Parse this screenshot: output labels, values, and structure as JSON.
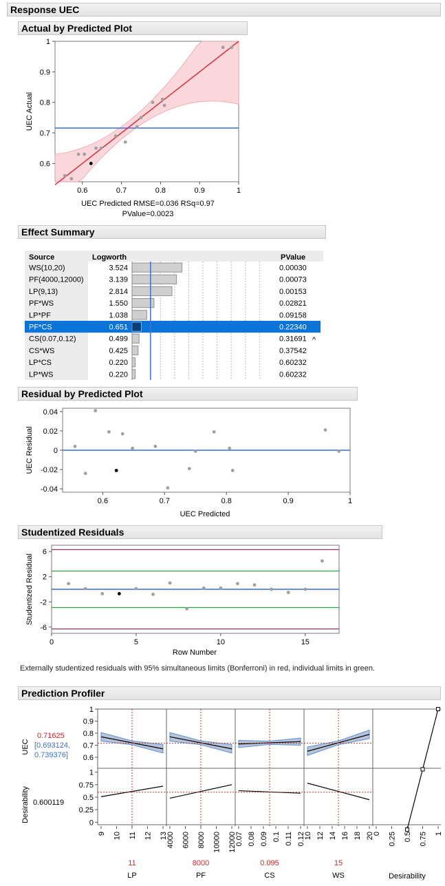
{
  "response_title": "Response UEC",
  "actual_predicted": {
    "title": "Actual by Predicted Plot",
    "ylabel": "UEC Actual",
    "xlabel": "UEC Predicted RMSE=0.036 RSq=0.97",
    "xlabel2": "PValue=0.0023",
    "x_ticks": [
      "0.6",
      "0.7",
      "0.8",
      "0.9",
      "1"
    ],
    "y_ticks": [
      "0.6",
      "0.7",
      "0.8",
      "0.9",
      "1"
    ]
  },
  "effect_summary": {
    "title": "Effect Summary",
    "headers": {
      "source": "Source",
      "logworth": "Logworth",
      "pvalue": "PValue"
    },
    "rows": [
      {
        "source": "WS(10,20)",
        "logworth": "3.524",
        "pvalue": "0.00030",
        "flag": ""
      },
      {
        "source": "PF(4000,12000)",
        "logworth": "3.139",
        "pvalue": "0.00073",
        "flag": ""
      },
      {
        "source": "LP(9,13)",
        "logworth": "2.814",
        "pvalue": "0.00153",
        "flag": ""
      },
      {
        "source": "PF*WS",
        "logworth": "1.550",
        "pvalue": "0.02821",
        "flag": ""
      },
      {
        "source": "LP*PF",
        "logworth": "1.038",
        "pvalue": "0.09158",
        "flag": ""
      },
      {
        "source": "PF*CS",
        "logworth": "0.651",
        "pvalue": "0.22340",
        "flag": ""
      },
      {
        "source": "CS(0.07,0.12)",
        "logworth": "0.499",
        "pvalue": "0.31691",
        "flag": "^"
      },
      {
        "source": "CS*WS",
        "logworth": "0.425",
        "pvalue": "0.37542",
        "flag": ""
      },
      {
        "source": "LP*CS",
        "logworth": "0.220",
        "pvalue": "0.60232",
        "flag": ""
      },
      {
        "source": "LP*WS",
        "logworth": "0.220",
        "pvalue": "0.60232",
        "flag": ""
      }
    ],
    "selected_index": 5
  },
  "residual_predicted": {
    "title": "Residual by Predicted Plot",
    "ylabel": "UEC Residual",
    "xlabel": "UEC Predicted",
    "x_ticks": [
      "0.6",
      "0.7",
      "0.8",
      "0.9",
      "1"
    ],
    "y_ticks": [
      "0.04",
      "0.02",
      "0",
      "-0.02",
      "-0.04"
    ]
  },
  "studentized": {
    "title": "Studentized Residuals",
    "ylabel": "Studentized Residual",
    "xlabel": "Row Number",
    "x_ticks": [
      "0",
      "5",
      "10",
      "15"
    ],
    "y_ticks": [
      "6",
      "2",
      "-2",
      "-6"
    ],
    "note": "Externally studentized residuals with 95% simultaneous limits (Bonferroni) in red, individual limits in green."
  },
  "profiler": {
    "title": "Prediction Profiler",
    "uec_value": "0.71625",
    "uec_ci_1": "[0.693124,",
    "uec_ci_2": "0.739376]",
    "uec_label": "UEC",
    "desirability_value": "0.600119",
    "desirability_label": "Desirability",
    "uec_y_ticks": [
      "1",
      "0.9",
      "0.8",
      "0.7",
      "0.6"
    ],
    "des_y_ticks": [
      "1",
      "0.75",
      "0.5",
      "0.25",
      "0"
    ],
    "factors": [
      {
        "name": "LP",
        "value": "11",
        "ticks": [
          "9",
          "10",
          "11",
          "12",
          "13"
        ]
      },
      {
        "name": "PF",
        "value": "8000",
        "ticks": [
          "4000",
          "6000",
          "8000",
          "10000",
          "12000"
        ]
      },
      {
        "name": "CS",
        "value": "0.095",
        "ticks": [
          "0.07",
          "0.08",
          "0.09",
          "0.1",
          "0.11",
          "0.12"
        ]
      },
      {
        "name": "WS",
        "value": "15",
        "ticks": [
          "10",
          "12",
          "14",
          "16",
          "18",
          "20"
        ]
      }
    ],
    "desirability_ticks": [
      "0",
      "0.25",
      "0.5",
      "0.75",
      "1"
    ],
    "desirability_column": "Desirability"
  },
  "chart_data": [
    {
      "type": "scatter",
      "title": "Actual by Predicted Plot",
      "xlabel": "UEC Predicted RMSE=0.036 RSq=0.97 PValue=0.0023",
      "ylabel": "UEC Actual",
      "xlim": [
        0.53,
        1.0
      ],
      "ylim": [
        0.54,
        1.0
      ],
      "points": [
        [
          0.555,
          0.56
        ],
        [
          0.572,
          0.55
        ],
        [
          0.59,
          0.63
        ],
        [
          0.605,
          0.63
        ],
        [
          0.622,
          0.6
        ],
        [
          0.635,
          0.65
        ],
        [
          0.648,
          0.65
        ],
        [
          0.685,
          0.69
        ],
        [
          0.71,
          0.67
        ],
        [
          0.74,
          0.72
        ],
        [
          0.75,
          0.75
        ],
        [
          0.78,
          0.8
        ],
        [
          0.805,
          0.81
        ],
        [
          0.81,
          0.79
        ],
        [
          0.96,
          0.98
        ],
        [
          0.982,
          0.98
        ]
      ],
      "highlight_index": 4,
      "fit_line": [
        [
          0.53,
          0.53
        ],
        [
          1.0,
          1.0
        ]
      ],
      "mean_line": 0.716
    },
    {
      "type": "bar",
      "title": "Effect Summary",
      "categories": [
        "WS(10,20)",
        "PF(4000,12000)",
        "LP(9,13)",
        "PF*WS",
        "LP*PF",
        "PF*CS",
        "CS(0.07,0.12)",
        "CS*WS",
        "LP*CS",
        "LP*WS"
      ],
      "values": [
        3.524,
        3.139,
        2.814,
        1.55,
        1.038,
        0.651,
        0.499,
        0.425,
        0.22,
        0.22
      ],
      "reference_line": 1.301,
      "xlim": [
        0,
        10
      ]
    },
    {
      "type": "scatter",
      "title": "Residual by Predicted Plot",
      "xlabel": "UEC Predicted",
      "ylabel": "UEC Residual",
      "xlim": [
        0.535,
        1.0
      ],
      "ylim": [
        -0.0435,
        0.0435
      ],
      "points": [
        [
          0.555,
          0.004
        ],
        [
          0.572,
          -0.024
        ],
        [
          0.588,
          0.041
        ],
        [
          0.61,
          0.019
        ],
        [
          0.622,
          -0.021
        ],
        [
          0.632,
          0.017
        ],
        [
          0.648,
          0.002
        ],
        [
          0.685,
          0.004
        ],
        [
          0.705,
          -0.039
        ],
        [
          0.74,
          -0.019
        ],
        [
          0.75,
          -0.001
        ],
        [
          0.78,
          0.019
        ],
        [
          0.805,
          0.002
        ],
        [
          0.81,
          -0.021
        ],
        [
          0.96,
          0.021
        ],
        [
          0.982,
          -0.001
        ]
      ],
      "highlight_index": 4,
      "zero_line": 0
    },
    {
      "type": "scatter",
      "title": "Studentized Residuals",
      "xlabel": "Row Number",
      "ylabel": "Studentized Residual",
      "xlim": [
        0,
        17
      ],
      "ylim": [
        -7,
        7
      ],
      "points": [
        [
          1,
          0.9
        ],
        [
          2,
          0.1
        ],
        [
          3,
          -0.7
        ],
        [
          4,
          -0.7
        ],
        [
          5,
          0.1
        ],
        [
          6,
          -0.8
        ],
        [
          7,
          1.0
        ],
        [
          8,
          -3.1
        ],
        [
          9,
          0.2
        ],
        [
          10,
          0.2
        ],
        [
          11,
          0.9
        ],
        [
          12,
          0.7
        ],
        [
          13,
          0.0
        ],
        [
          14,
          -0.5
        ],
        [
          15,
          0.0
        ],
        [
          16,
          4.5
        ]
      ],
      "highlight_index": 3,
      "limits_red": [
        6.3,
        -6.3
      ],
      "limits_green": [
        2.9,
        -2.9
      ],
      "center": 0
    },
    {
      "type": "line",
      "title": "Prediction Profiler",
      "uec_ylim": [
        0.52,
        1.0
      ],
      "des_ylim": [
        -0.05,
        1.05
      ],
      "panels": [
        {
          "factor": "LP",
          "xlim": [
            9,
            13
          ],
          "current": 11,
          "uec": [
            [
              9,
              0.77
            ],
            [
              13,
              0.67
            ]
          ],
          "band": 0.035,
          "des": [
            [
              9,
              0.51
            ],
            [
              13,
              0.72
            ]
          ]
        },
        {
          "factor": "PF",
          "xlim": [
            4000,
            12000
          ],
          "current": 8000,
          "uec": [
            [
              4000,
              0.77
            ],
            [
              12000,
              0.67
            ]
          ],
          "band": 0.035,
          "des": [
            [
              4000,
              0.48
            ],
            [
              12000,
              0.75
            ]
          ]
        },
        {
          "factor": "CS",
          "xlim": [
            0.07,
            0.12
          ],
          "current": 0.095,
          "uec": [
            [
              0.07,
              0.71
            ],
            [
              0.12,
              0.73
            ]
          ],
          "band": 0.03,
          "des": [
            [
              0.07,
              0.63
            ],
            [
              0.12,
              0.58
            ]
          ]
        },
        {
          "factor": "WS",
          "xlim": [
            10,
            20
          ],
          "current": 15,
          "uec": [
            [
              10,
              0.65
            ],
            [
              20,
              0.79
            ]
          ],
          "band": 0.035,
          "des": [
            [
              10,
              0.78
            ],
            [
              20,
              0.45
            ]
          ]
        }
      ],
      "desirability_curve": [
        [
          1.0,
          1.0
        ],
        [
          0.5,
          0.75
        ],
        [
          0.0,
          0.5
        ]
      ],
      "current_uec": 0.71625,
      "current_desirability": 0.600119
    }
  ]
}
